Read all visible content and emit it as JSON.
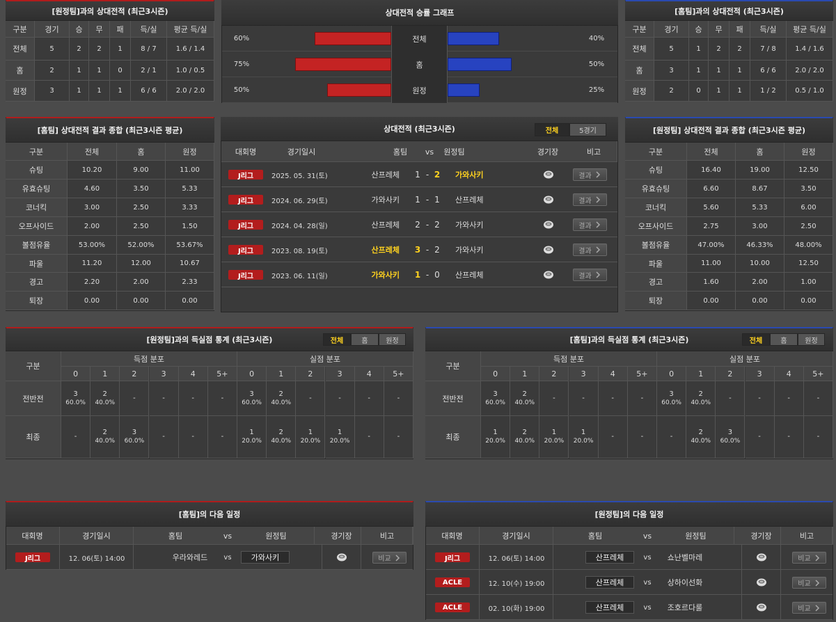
{
  "away_h2h": {
    "title": "[원정팀]과의 상대전적 (최근3시즌)",
    "header": [
      "구분",
      "경기",
      "승",
      "무",
      "패",
      "득/실",
      "평균 득/실"
    ],
    "rows": [
      [
        "전체",
        "5",
        "2",
        "2",
        "1",
        "8 / 7",
        "1.6 / 1.4"
      ],
      [
        "홈",
        "2",
        "1",
        "1",
        "0",
        "2 / 1",
        "1.0 / 0.5"
      ],
      [
        "원정",
        "3",
        "1",
        "1",
        "1",
        "6 / 6",
        "2.0 / 2.0"
      ]
    ]
  },
  "win_graph": {
    "title": "상대전적 승률 그래프",
    "home_color": "#c42323",
    "away_color": "#2743c0",
    "rows": [
      {
        "label": "전체",
        "home": {
          "value": 60,
          "label": "60%"
        },
        "away": {
          "value": 40,
          "label": "40%"
        }
      },
      {
        "label": "홈",
        "home": {
          "value": 75,
          "label": "75%"
        },
        "away": {
          "value": 50,
          "label": "50%"
        }
      },
      {
        "label": "원정",
        "home": {
          "value": 50,
          "label": "50%"
        },
        "away": {
          "value": 25,
          "label": "25%"
        }
      }
    ]
  },
  "home_h2h": {
    "title": "[홈팀]과의 상대전적 (최근3시즌)",
    "header": [
      "구분",
      "경기",
      "승",
      "무",
      "패",
      "득/실",
      "평균 득/실"
    ],
    "rows": [
      [
        "전체",
        "5",
        "1",
        "2",
        "2",
        "7 / 8",
        "1.4 / 1.6"
      ],
      [
        "홈",
        "3",
        "1",
        "1",
        "1",
        "6 / 6",
        "2.0 / 2.0"
      ],
      [
        "원정",
        "2",
        "0",
        "1",
        "1",
        "1 / 2",
        "0.5 / 1.0"
      ]
    ]
  },
  "home_summary": {
    "title": "[홈팀] 상대전적 결과 종합 (최근3시즌 평균)",
    "header": [
      "구분",
      "전체",
      "홈",
      "원정"
    ],
    "rows": [
      [
        "슈팅",
        "10.20",
        "9.00",
        "11.00"
      ],
      [
        "유효슈팅",
        "4.60",
        "3.50",
        "5.33"
      ],
      [
        "코너킥",
        "3.00",
        "2.50",
        "3.33"
      ],
      [
        "오프사이드",
        "2.00",
        "2.50",
        "1.50"
      ],
      [
        "볼점유율",
        "53.00%",
        "52.00%",
        "53.67%"
      ],
      [
        "파울",
        "11.20",
        "12.00",
        "10.67"
      ],
      [
        "경고",
        "2.20",
        "2.00",
        "2.33"
      ],
      [
        "퇴장",
        "0.00",
        "0.00",
        "0.00"
      ]
    ]
  },
  "matches": {
    "title": "상대전적 (최근3시즌)",
    "tabs": [
      {
        "label": "전체",
        "active": true
      },
      {
        "label": "5경기",
        "active": false
      }
    ],
    "header": [
      "대회명",
      "경기일시",
      "홈팀",
      "vs",
      "원정팀",
      "경기장",
      "비고"
    ],
    "rows": [
      {
        "league": "J리그",
        "date": "2025. 05. 31(토)",
        "home": "산프레체",
        "home_score": 1,
        "sep": "-",
        "away_score": 2,
        "away": "가와사키",
        "winner": "away",
        "button": "결과"
      },
      {
        "league": "J리그",
        "date": "2024. 06. 29(토)",
        "home": "가와사키",
        "home_score": 1,
        "sep": "-",
        "away_score": 1,
        "away": "산프레체",
        "winner": null,
        "button": "결과"
      },
      {
        "league": "J리그",
        "date": "2024. 04. 28(일)",
        "home": "산프레체",
        "home_score": 2,
        "sep": "-",
        "away_score": 2,
        "away": "가와사키",
        "winner": null,
        "button": "결과"
      },
      {
        "league": "J리그",
        "date": "2023. 08. 19(토)",
        "home": "산프레체",
        "home_score": 3,
        "sep": "-",
        "away_score": 2,
        "away": "가와사키",
        "winner": "home",
        "button": "결과"
      },
      {
        "league": "J리그",
        "date": "2023. 06. 11(일)",
        "home": "가와사키",
        "home_score": 1,
        "sep": "-",
        "away_score": 0,
        "away": "산프레체",
        "winner": "home",
        "button": "결과"
      }
    ]
  },
  "away_summary": {
    "title": "[원정팀] 상대전적 결과 종합 (최근3시즌 평균)",
    "header": [
      "구분",
      "전체",
      "홈",
      "원정"
    ],
    "rows": [
      [
        "슈팅",
        "16.40",
        "19.00",
        "12.50"
      ],
      [
        "유효슈팅",
        "6.60",
        "8.67",
        "3.50"
      ],
      [
        "코너킥",
        "5.60",
        "5.33",
        "6.00"
      ],
      [
        "오프사이드",
        "2.75",
        "3.00",
        "2.50"
      ],
      [
        "볼점유율",
        "47.00%",
        "46.33%",
        "48.00%"
      ],
      [
        "파울",
        "11.00",
        "10.00",
        "12.50"
      ],
      [
        "경고",
        "1.60",
        "2.00",
        "1.00"
      ],
      [
        "퇴장",
        "0.00",
        "0.00",
        "0.00"
      ]
    ]
  },
  "away_goals": {
    "title": "[원정팀]과의 득실점 통계 (최근3시즌)",
    "tabs": [
      {
        "label": "전체",
        "active": true
      },
      {
        "label": "홈",
        "active": false
      },
      {
        "label": "원정",
        "active": false
      }
    ],
    "label_header": "구분",
    "scored_header": "득점 분포",
    "conceded_header": "실점 분포",
    "columns": [
      "0",
      "1",
      "2",
      "3",
      "4",
      "5+"
    ],
    "rows": [
      {
        "label": "전반전",
        "scored": [
          [
            "3",
            "60.0%"
          ],
          [
            "2",
            "40.0%"
          ],
          [
            "-"
          ],
          [
            "-"
          ],
          [
            "-"
          ],
          [
            "-"
          ]
        ],
        "conceded": [
          [
            "3",
            "60.0%"
          ],
          [
            "2",
            "40.0%"
          ],
          [
            "-"
          ],
          [
            "-"
          ],
          [
            "-"
          ],
          [
            "-"
          ]
        ]
      },
      {
        "label": "최종",
        "scored": [
          [
            "-"
          ],
          [
            "2",
            "40.0%"
          ],
          [
            "3",
            "60.0%"
          ],
          [
            "-"
          ],
          [
            "-"
          ],
          [
            "-"
          ]
        ],
        "conceded": [
          [
            "1",
            "20.0%"
          ],
          [
            "2",
            "40.0%"
          ],
          [
            "1",
            "20.0%"
          ],
          [
            "1",
            "20.0%"
          ],
          [
            "-"
          ],
          [
            "-"
          ]
        ]
      }
    ]
  },
  "home_goals": {
    "title": "[홈팀]과의 득실점 통계 (최근3시즌)",
    "tabs": [
      {
        "label": "전체",
        "active": true
      },
      {
        "label": "홈",
        "active": false
      },
      {
        "label": "원정",
        "active": false
      }
    ],
    "label_header": "구분",
    "scored_header": "득점 분포",
    "conceded_header": "실점 분포",
    "columns": [
      "0",
      "1",
      "2",
      "3",
      "4",
      "5+"
    ],
    "rows": [
      {
        "label": "전반전",
        "scored": [
          [
            "3",
            "60.0%"
          ],
          [
            "2",
            "40.0%"
          ],
          [
            "-"
          ],
          [
            "-"
          ],
          [
            "-"
          ],
          [
            "-"
          ]
        ],
        "conceded": [
          [
            "3",
            "60.0%"
          ],
          [
            "2",
            "40.0%"
          ],
          [
            "-"
          ],
          [
            "-"
          ],
          [
            "-"
          ],
          [
            "-"
          ]
        ]
      },
      {
        "label": "최종",
        "scored": [
          [
            "1",
            "20.0%"
          ],
          [
            "2",
            "40.0%"
          ],
          [
            "1",
            "20.0%"
          ],
          [
            "1",
            "20.0%"
          ],
          [
            "-"
          ],
          [
            "-"
          ]
        ],
        "conceded": [
          [
            "-"
          ],
          [
            "2",
            "40.0%"
          ],
          [
            "3",
            "60.0%"
          ],
          [
            "-"
          ],
          [
            "-"
          ],
          [
            "-"
          ]
        ]
      }
    ]
  },
  "home_next": {
    "title": "[홈팀]의 다음 일정",
    "header": [
      "대회명",
      "경기일시",
      "홈팀",
      "vs",
      "원정팀",
      "경기장",
      "비고"
    ],
    "rows": [
      {
        "league": "J리그",
        "date": "12. 06(토) 14:00",
        "home": "우라와레드",
        "vs": "vs",
        "away": "가와사키",
        "boxed": "away",
        "button": "비교"
      }
    ]
  },
  "away_next": {
    "title": "[원정팀]의 다음 일정",
    "header": [
      "대회명",
      "경기일시",
      "홈팀",
      "vs",
      "원정팀",
      "경기장",
      "비고"
    ],
    "rows": [
      {
        "league": "J리그",
        "date": "12. 06(토) 14:00",
        "home": "산프레체",
        "vs": "vs",
        "away": "쇼난벨마레",
        "boxed": "home",
        "button": "비교"
      },
      {
        "league": "ACLE",
        "date": "12. 10(수) 19:00",
        "home": "산프레체",
        "vs": "vs",
        "away": "상하이선화",
        "boxed": "home",
        "button": "비교"
      },
      {
        "league": "ACLE",
        "date": "02. 10(화) 19:00",
        "home": "산프레체",
        "vs": "vs",
        "away": "조호르다룰",
        "boxed": "home",
        "button": "비교"
      }
    ]
  }
}
